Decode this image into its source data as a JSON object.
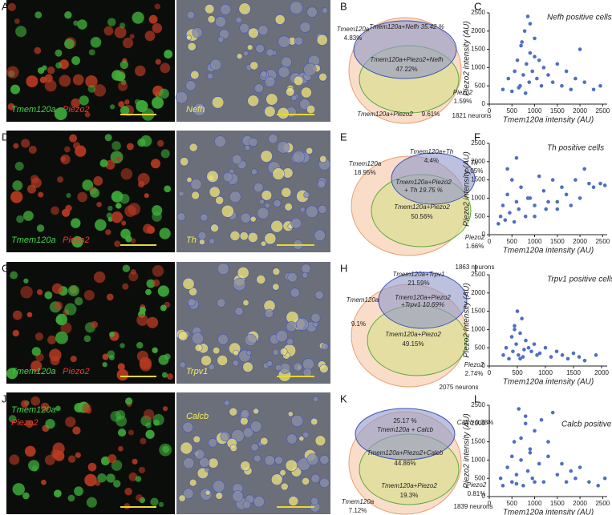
{
  "figure": {
    "rows": [
      {
        "panel_labels": [
          "A",
          "B",
          "C"
        ],
        "micro_left": [
          {
            "text": "Tmem120a",
            "color": "#44d44a"
          },
          {
            "text": "Piezo2",
            "color": "#ee3a2c"
          }
        ],
        "micro_right": {
          "text": "Nefh",
          "color": "#f2ec5a"
        },
        "venn": [
          "Tmem120a",
          "4.83%",
          "Tmem120a+Nefh 35.42 %",
          "Tmem120a+Piezo2+Nefh",
          "47.22%",
          "Piezo2",
          "1.59%",
          "1821 neurons",
          "Tmem120a+Piezo2",
          "9.61%"
        ]
      },
      {
        "panel_labels": [
          "D",
          "E",
          "F"
        ],
        "micro_left": [
          {
            "text": "Tmem120a",
            "color": "#44d44a"
          },
          {
            "text": "Piezo2",
            "color": "#ee3a2c"
          }
        ],
        "micro_right": {
          "text": "Th",
          "color": "#f2ec5a"
        },
        "venn": [
          "Tmem120a",
          "18.95%",
          "Tmem120a+Th",
          "4.4%",
          "Th",
          "0.05%",
          "Tmem120a+Piezo2",
          "+ Th 19.75 %",
          "Tmem120a+Piezo2",
          "50.56%",
          "Piezo2",
          "1.66%",
          "1863 neurons"
        ]
      },
      {
        "panel_labels": [
          "G",
          "H",
          "I"
        ],
        "micro_left": [
          {
            "text": "Tmem120a",
            "color": "#44d44a"
          },
          {
            "text": "Piezo2",
            "color": "#ee3a2c"
          }
        ],
        "micro_right": {
          "text": "Trpv1",
          "color": "#f2ec5a"
        },
        "venn": [
          "Tmem120a+Trpv1",
          "21.59%",
          "Tmem120a+Piezo2",
          "+Trpv1 10.69%",
          "Tmem120a",
          "9.1%",
          "Tmem120a+Piezo2",
          "49.15%",
          "Piezo2",
          "2.74%",
          "2075 neurons"
        ]
      },
      {
        "panel_labels": [
          "J",
          "K",
          "L"
        ],
        "micro_left": [
          {
            "text": "Tmem120a",
            "color": "#44d44a"
          },
          {
            "text": "Piezo2",
            "color": "#ee3a2c"
          }
        ],
        "micro_right": {
          "text": "Calcb",
          "color": "#f2ec5a"
        },
        "venn": [
          "25.17 %",
          "Tmem120a + Calcb",
          "Calcb",
          "0.38%",
          "Tmem120a+Piezo2+Calcb",
          "44.86%",
          "Tmem120a+Piezo2",
          "19.3%",
          "Piezo2",
          "0.81%",
          "1839 neurons",
          "Tmem120a",
          "7.12%"
        ]
      }
    ]
  },
  "chart_data": [
    {
      "type": "scatter",
      "title": "Nefh positive cells",
      "x_label": "Tmem120a intensity (AU)",
      "y_label": "Piezo2 intensity (AU)",
      "color": "#4f6fc4",
      "x": [
        300,
        420,
        500,
        560,
        620,
        680,
        700,
        750,
        780,
        820,
        850,
        880,
        900,
        950,
        1000,
        1050,
        1100,
        1150,
        1200,
        1300,
        1400,
        1500,
        1600,
        1700,
        1800,
        1900,
        2000,
        2100,
        2300,
        2450,
        800,
        900,
        650,
        1000,
        720
      ],
      "values": [
        400,
        700,
        350,
        900,
        1200,
        500,
        1600,
        800,
        2000,
        1100,
        2400,
        600,
        1400,
        900,
        1800,
        700,
        1200,
        500,
        1000,
        800,
        600,
        1100,
        500,
        900,
        400,
        700,
        1500,
        600,
        400,
        500,
        300,
        2200,
        450,
        1300,
        1700
      ],
      "xlim": [
        0,
        2600
      ],
      "ylim": [
        0,
        2500
      ],
      "xticks": [
        0,
        500,
        1000,
        1500,
        2000,
        2500
      ],
      "yticks": [
        0,
        500,
        1000,
        1500,
        2000,
        2500
      ]
    },
    {
      "type": "scatter",
      "title": "Th positive cells",
      "x_label": "Tmem120a intensity (AU)",
      "y_label": "Piezo2 intensity (AU)",
      "color": "#4f6fc4",
      "x": [
        200,
        250,
        300,
        350,
        400,
        450,
        500,
        550,
        600,
        650,
        700,
        800,
        900,
        1000,
        1100,
        1200,
        1300,
        1400,
        1500,
        1600,
        1700,
        1800,
        1900,
        2000,
        2100,
        2200,
        2300,
        2450,
        2550,
        400,
        600,
        850,
        1000,
        1250,
        1500
      ],
      "values": [
        300,
        500,
        800,
        400,
        1100,
        600,
        1500,
        350,
        900,
        700,
        1300,
        500,
        1000,
        800,
        1600,
        1200,
        900,
        1500,
        700,
        1300,
        1100,
        800,
        1500,
        1000,
        1800,
        1400,
        1300,
        1400,
        1350,
        1800,
        2100,
        1000,
        500,
        700,
        900
      ],
      "xlim": [
        0,
        2600
      ],
      "ylim": [
        0,
        2500
      ],
      "xticks": [
        0,
        500,
        1000,
        1500,
        2000,
        2500
      ],
      "yticks": [
        0,
        500,
        1000,
        1500,
        2000,
        2500
      ]
    },
    {
      "type": "scatter",
      "title": "Trpv1 positive cells",
      "x_label": "Tmem120a intensity (AU)",
      "y_label": "Piezo2 intensity (AU)",
      "color": "#4f6fc4",
      "x": [
        250,
        300,
        350,
        400,
        420,
        450,
        480,
        500,
        520,
        550,
        580,
        600,
        650,
        700,
        750,
        800,
        850,
        900,
        1000,
        1100,
        1200,
        1300,
        1400,
        1500,
        1600,
        1700,
        1900,
        450,
        550,
        620
      ],
      "values": [
        300,
        500,
        200,
        800,
        400,
        1100,
        600,
        1500,
        300,
        900,
        1300,
        250,
        700,
        500,
        400,
        600,
        300,
        350,
        500,
        250,
        400,
        300,
        200,
        350,
        250,
        150,
        300,
        1000,
        200,
        450
      ],
      "xlim": [
        0,
        2100
      ],
      "ylim": [
        0,
        2500
      ],
      "xticks": [
        0,
        500,
        1000,
        1500,
        2000
      ],
      "yticks": [
        0,
        500,
        1000,
        1500,
        2000,
        2500
      ]
    },
    {
      "type": "scatter",
      "title": "Calcb positive cells",
      "x_label": "Tmem120a intensity (AU)",
      "y_label": "Piezo2 intensity (AU)",
      "color": "#4f6fc4",
      "x": [
        250,
        300,
        400,
        500,
        550,
        600,
        650,
        700,
        750,
        800,
        850,
        900,
        950,
        1000,
        1100,
        1200,
        1300,
        1400,
        1500,
        1600,
        1700,
        1800,
        1900,
        2000,
        2200,
        2400,
        2550,
        700,
        800,
        900,
        1000,
        1150,
        600,
        1300,
        500
      ],
      "values": [
        500,
        300,
        800,
        400,
        1500,
        600,
        2400,
        1000,
        300,
        2000,
        700,
        1300,
        500,
        1800,
        900,
        400,
        1100,
        2300,
        600,
        900,
        400,
        700,
        500,
        800,
        400,
        300,
        500,
        1600,
        2200,
        1200,
        400,
        2100,
        350,
        1500,
        1100
      ],
      "xlim": [
        0,
        2600
      ],
      "ylim": [
        0,
        2500
      ],
      "xticks": [
        0,
        500,
        1000,
        1500,
        2000,
        2500
      ],
      "yticks": [
        0,
        500,
        1000,
        1500,
        2000,
        2500
      ]
    }
  ]
}
